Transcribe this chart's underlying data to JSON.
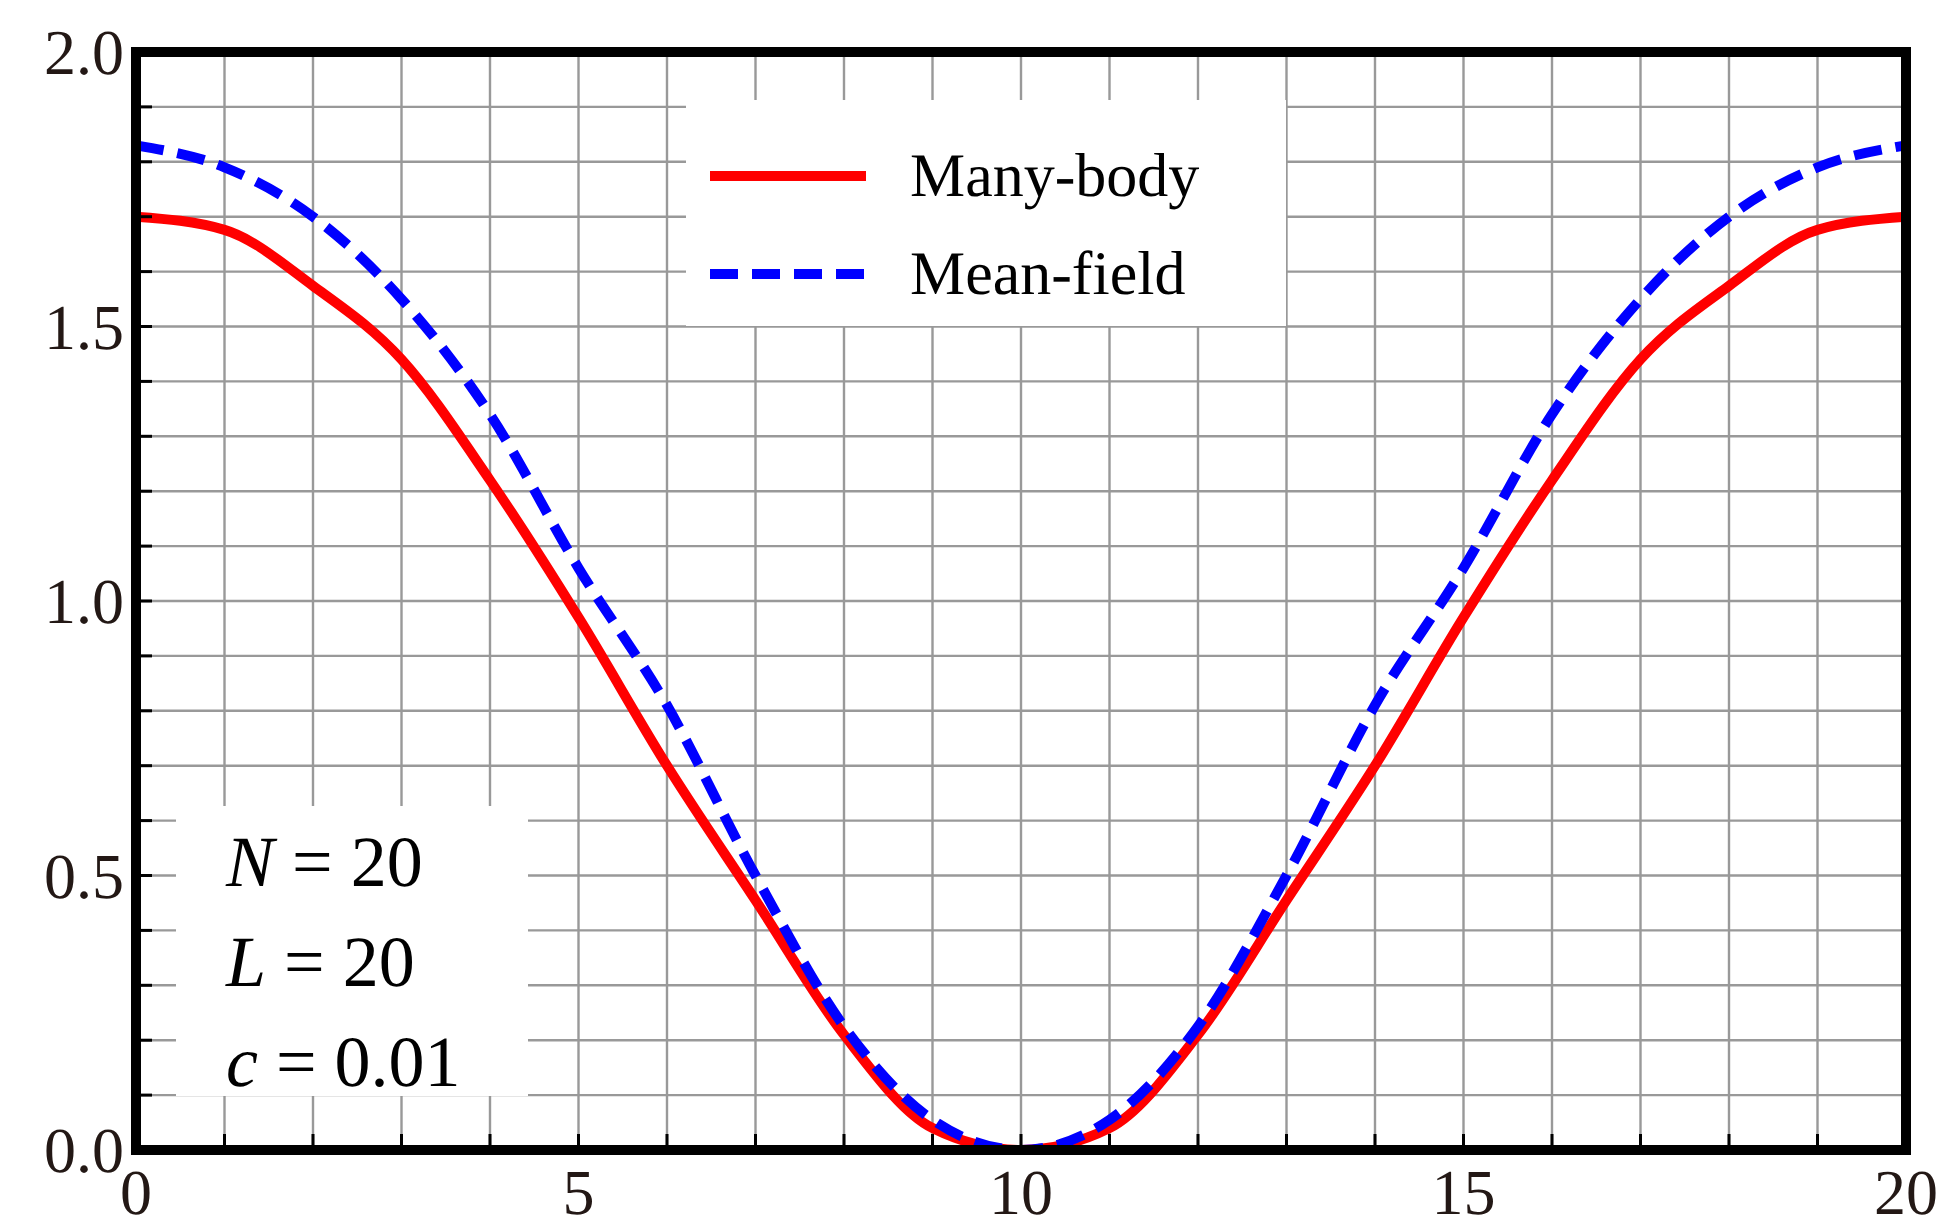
{
  "chart_data": {
    "type": "line",
    "x": [
      0,
      1,
      2,
      3,
      4,
      5,
      6,
      7,
      8,
      9,
      10,
      11,
      12,
      13,
      14,
      15,
      16,
      17,
      18,
      19,
      20
    ],
    "series": [
      {
        "name": "Many-body",
        "color": "#ff0000",
        "line_style": "solid",
        "values": [
          1.7,
          1.676,
          1.574,
          1.44,
          1.22,
          0.97,
          0.7,
          0.455,
          0.21,
          0.04,
          0,
          0.04,
          0.21,
          0.455,
          0.7,
          0.97,
          1.22,
          1.44,
          1.574,
          1.676,
          1.7
        ]
      },
      {
        "name": "Mean-field",
        "color": "#0000ff",
        "line_style": "dashed",
        "values": [
          1.83,
          1.79,
          1.7,
          1.55,
          1.34,
          1.06,
          0.81,
          0.5,
          0.225,
          0.055,
          0,
          0.055,
          0.225,
          0.5,
          0.81,
          1.06,
          1.34,
          1.55,
          1.7,
          1.79,
          1.83
        ]
      }
    ],
    "xlim": [
      0,
      20
    ],
    "ylim": [
      0,
      2
    ],
    "xticks": [
      0,
      {
        "value": 1,
        "label": null
      },
      {
        "value": 2,
        "label": null
      },
      {
        "value": 3,
        "label": null
      },
      {
        "value": 4,
        "label": null
      },
      5,
      {
        "value": 6,
        "label": null
      },
      {
        "value": 7,
        "label": null
      },
      {
        "value": 8,
        "label": null
      },
      {
        "value": 9,
        "label": null
      },
      10,
      {
        "value": 11,
        "label": null
      },
      {
        "value": 12,
        "label": null
      },
      {
        "value": 13,
        "label": null
      },
      {
        "value": 14,
        "label": null
      },
      15,
      {
        "value": 16,
        "label": null
      },
      {
        "value": 17,
        "label": null
      },
      {
        "value": 18,
        "label": null
      },
      {
        "value": 19,
        "label": null
      },
      20
    ],
    "yticks": [
      {
        "value": 0,
        "label": "0.0"
      },
      {
        "value": 0.1,
        "label": null
      },
      {
        "value": 0.2,
        "label": null
      },
      {
        "value": 0.3,
        "label": null
      },
      {
        "value": 0.4,
        "label": null
      },
      {
        "value": 0.5,
        "label": "0.5"
      },
      {
        "value": 0.6,
        "label": null
      },
      {
        "value": 0.7,
        "label": null
      },
      {
        "value": 0.8,
        "label": null
      },
      {
        "value": 0.9,
        "label": null
      },
      {
        "value": 1,
        "label": "1.0"
      },
      {
        "value": 1.1,
        "label": null
      },
      {
        "value": 1.2,
        "label": null
      },
      {
        "value": 1.3,
        "label": null
      },
      {
        "value": 1.4,
        "label": null
      },
      {
        "value": 1.5,
        "label": "1.5"
      },
      {
        "value": 1.6,
        "label": null
      },
      {
        "value": 1.7,
        "label": null
      },
      {
        "value": 1.8,
        "label": null
      },
      {
        "value": 1.9,
        "label": null
      },
      {
        "value": 2,
        "label": "2.0"
      }
    ],
    "grid": true,
    "legend": "top",
    "marker": "none",
    "annotations": [
      "N = 20",
      "L = 20",
      "c = 0.01"
    ]
  }
}
